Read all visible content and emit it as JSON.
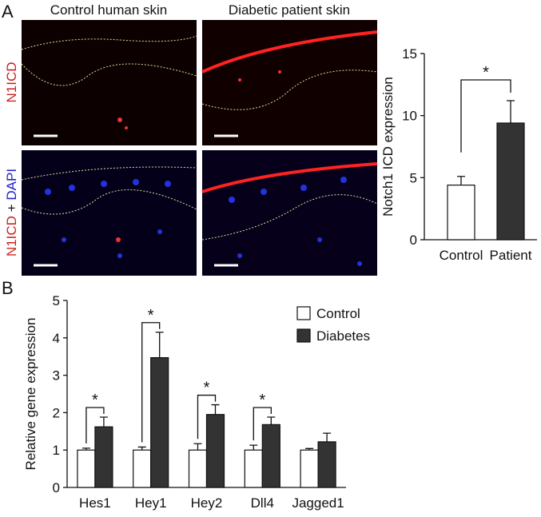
{
  "figure": {
    "panel_a_label": "A",
    "panel_b_label": "B",
    "columns": [
      "Control human skin",
      "Diabetic patient skin"
    ],
    "row_labels": [
      [
        "N1ICD"
      ],
      [
        "N1ICD",
        "+",
        "DAPI"
      ]
    ]
  },
  "chart_data": [
    {
      "type": "bar",
      "ylabel": "Notch1 ICD expression",
      "categories": [
        "Control",
        "Patient"
      ],
      "values": [
        4.4,
        9.4
      ],
      "errors": [
        0.7,
        1.8
      ],
      "colors": [
        "#ffffff",
        "#333333"
      ],
      "ylim": [
        0,
        15
      ],
      "yticks": [
        0,
        5,
        10,
        15
      ],
      "significance": "*"
    },
    {
      "type": "grouped_bar",
      "ylabel": "Relative gene expression",
      "categories": [
        "Hes1",
        "Hey1",
        "Hey2",
        "Dll4",
        "Jagged1"
      ],
      "series": [
        {
          "name": "Control",
          "color": "#ffffff",
          "values": [
            1.0,
            1.0,
            1.0,
            1.0,
            1.0
          ],
          "errors": [
            0.05,
            0.08,
            0.17,
            0.13,
            0.04
          ]
        },
        {
          "name": "Diabetes",
          "color": "#333333",
          "values": [
            1.62,
            3.47,
            1.95,
            1.68,
            1.22
          ],
          "errors": [
            0.26,
            0.68,
            0.26,
            0.2,
            0.23
          ]
        }
      ],
      "ylim": [
        0,
        5
      ],
      "yticks": [
        0,
        1,
        2,
        3,
        4,
        5
      ],
      "significance": [
        "*",
        "*",
        "*",
        "*",
        null
      ]
    }
  ]
}
